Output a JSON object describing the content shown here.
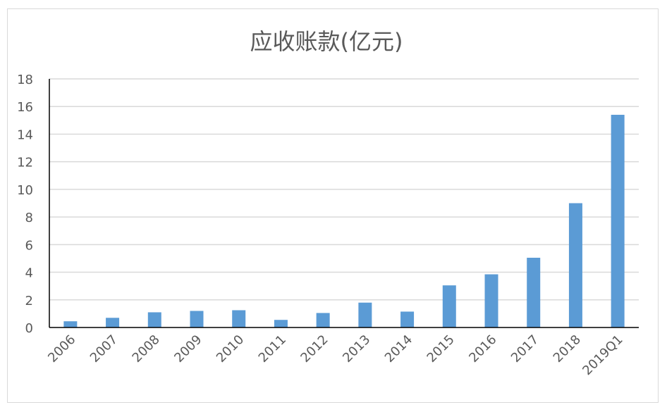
{
  "chart_data": {
    "type": "bar",
    "title": "应收账款(亿元)",
    "xlabel": "",
    "ylabel": "",
    "categories": [
      "2006",
      "2007",
      "2008",
      "2009",
      "2010",
      "2011",
      "2012",
      "2013",
      "2014",
      "2015",
      "2016",
      "2017",
      "2018",
      "2019Q1"
    ],
    "values": [
      0.45,
      0.7,
      1.1,
      1.2,
      1.25,
      0.55,
      1.05,
      1.8,
      1.15,
      3.05,
      3.85,
      5.05,
      9.0,
      15.4
    ],
    "ylim": [
      0,
      18
    ],
    "yticks": [
      "0",
      "2",
      "4",
      "6",
      "8",
      "10",
      "12",
      "14",
      "16",
      "18"
    ],
    "grid": true,
    "legend": "none",
    "bar_color": "#5b9bd5",
    "grid_color": "#d9d9d9",
    "axis_color": "#000000",
    "text_color": "#595959"
  }
}
